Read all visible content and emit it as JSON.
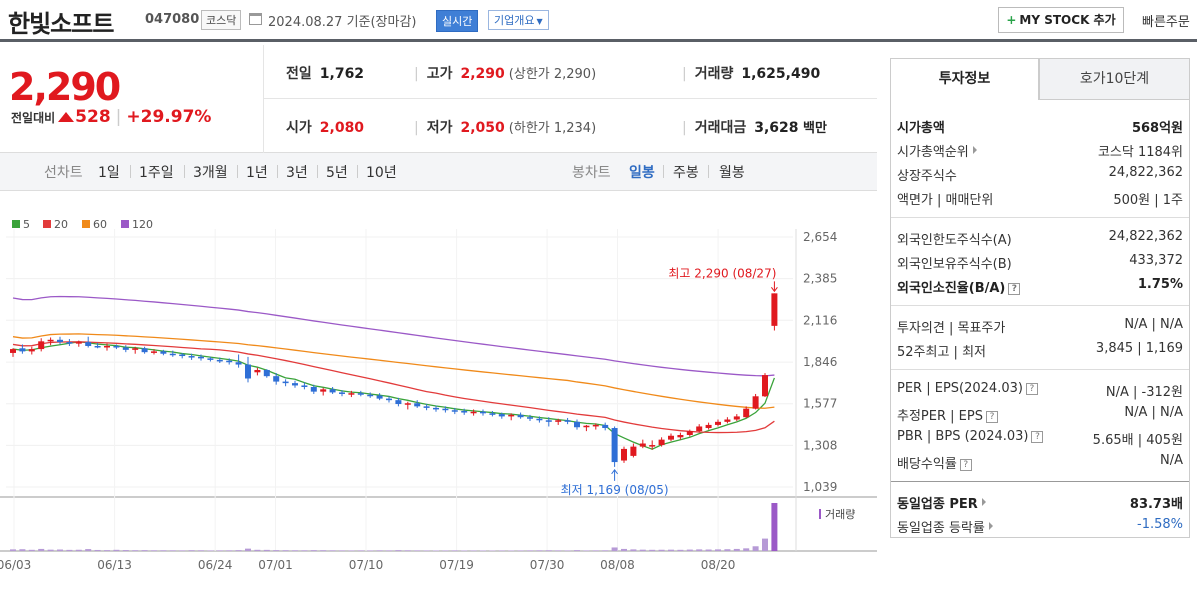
{
  "header": {
    "company_name": "한빛소프트",
    "stock_code": "047080",
    "market": "코스닥",
    "date_text": "2024.08.27  기준(장마감)",
    "realtime_label": "실시간",
    "overview_label": "기업개요",
    "mystock_label": "MY STOCK 추가",
    "quick_order_label": "빠른주문"
  },
  "price": {
    "current": "2,290",
    "change_label": "전일대비",
    "change_value": "528",
    "change_pct": "+29.97%"
  },
  "quote": {
    "prev_label": "전일",
    "prev_value": "1,762",
    "high_label": "고가",
    "high_value": "2,290",
    "upper_limit": "(상한가 2,290)",
    "volume_label": "거래량",
    "volume_value": "1,625,490",
    "open_label": "시가",
    "open_value": "2,080",
    "low_label": "저가",
    "low_value": "2,050",
    "lower_limit": "(하한가 1,234)",
    "amount_label": "거래대금",
    "amount_value": "3,628",
    "amount_unit": "백만"
  },
  "period_tabs": {
    "line_label": "선차트",
    "line_tabs": [
      "1일",
      "1주일",
      "3개월",
      "1년",
      "3년",
      "5년",
      "10년"
    ],
    "candle_label": "봉차트",
    "candle_tabs": [
      "일봉",
      "주봉",
      "월봉"
    ],
    "selected": "일봉"
  },
  "chart_data": {
    "type": "candlestick",
    "legend": [
      "5",
      "20",
      "60",
      "120"
    ],
    "legend_colors": [
      "#3aa33a",
      "#e23b3b",
      "#f08a1a",
      "#9b59c7"
    ],
    "y_ticks": [
      "2,654",
      "2,385",
      "2,116",
      "1,846",
      "1,577",
      "1,308",
      "1,039"
    ],
    "ylim": [
      1039,
      2654
    ],
    "x_ticks": [
      "06/03",
      "06/13",
      "06/24",
      "07/01",
      "07/10",
      "07/19",
      "07/30",
      "08/08",
      "08/20"
    ],
    "high_annotation": "최고 2,290 (08/27)",
    "low_annotation": "최저 1,169 (08/05)",
    "volume_label": "거래량",
    "up_color": "#e0191f",
    "down_color": "#2f6fd6",
    "candles": [
      {
        "o": 1905,
        "h": 1935,
        "l": 1880,
        "c": 1930
      },
      {
        "o": 1935,
        "h": 1960,
        "l": 1900,
        "c": 1915
      },
      {
        "o": 1915,
        "h": 1945,
        "l": 1895,
        "c": 1930
      },
      {
        "o": 1930,
        "h": 2000,
        "l": 1915,
        "c": 1980
      },
      {
        "o": 1980,
        "h": 2005,
        "l": 1955,
        "c": 1990
      },
      {
        "o": 1990,
        "h": 2010,
        "l": 1960,
        "c": 1975
      },
      {
        "o": 1975,
        "h": 1995,
        "l": 1950,
        "c": 1965
      },
      {
        "o": 1965,
        "h": 1985,
        "l": 1945,
        "c": 1975
      },
      {
        "o": 1975,
        "h": 2010,
        "l": 1940,
        "c": 1950
      },
      {
        "o": 1950,
        "h": 1970,
        "l": 1935,
        "c": 1945
      },
      {
        "o": 1945,
        "h": 1965,
        "l": 1920,
        "c": 1950
      },
      {
        "o": 1950,
        "h": 1960,
        "l": 1930,
        "c": 1940
      },
      {
        "o": 1940,
        "h": 1955,
        "l": 1910,
        "c": 1925
      },
      {
        "o": 1925,
        "h": 1945,
        "l": 1900,
        "c": 1935
      },
      {
        "o": 1935,
        "h": 1945,
        "l": 1900,
        "c": 1910
      },
      {
        "o": 1910,
        "h": 1930,
        "l": 1895,
        "c": 1915
      },
      {
        "o": 1915,
        "h": 1925,
        "l": 1890,
        "c": 1900
      },
      {
        "o": 1900,
        "h": 1920,
        "l": 1880,
        "c": 1895
      },
      {
        "o": 1895,
        "h": 1905,
        "l": 1870,
        "c": 1885
      },
      {
        "o": 1885,
        "h": 1900,
        "l": 1860,
        "c": 1880
      },
      {
        "o": 1880,
        "h": 1895,
        "l": 1855,
        "c": 1870
      },
      {
        "o": 1870,
        "h": 1880,
        "l": 1850,
        "c": 1860
      },
      {
        "o": 1860,
        "h": 1875,
        "l": 1840,
        "c": 1855
      },
      {
        "o": 1855,
        "h": 1870,
        "l": 1830,
        "c": 1845
      },
      {
        "o": 1845,
        "h": 1895,
        "l": 1810,
        "c": 1830
      },
      {
        "o": 1830,
        "h": 1880,
        "l": 1715,
        "c": 1740
      },
      {
        "o": 1780,
        "h": 1810,
        "l": 1760,
        "c": 1795
      },
      {
        "o": 1795,
        "h": 1800,
        "l": 1745,
        "c": 1755
      },
      {
        "o": 1755,
        "h": 1775,
        "l": 1700,
        "c": 1720
      },
      {
        "o": 1720,
        "h": 1735,
        "l": 1690,
        "c": 1710
      },
      {
        "o": 1710,
        "h": 1725,
        "l": 1680,
        "c": 1695
      },
      {
        "o": 1695,
        "h": 1715,
        "l": 1670,
        "c": 1685
      },
      {
        "o": 1685,
        "h": 1700,
        "l": 1640,
        "c": 1655
      },
      {
        "o": 1655,
        "h": 1680,
        "l": 1630,
        "c": 1670
      },
      {
        "o": 1670,
        "h": 1685,
        "l": 1640,
        "c": 1650
      },
      {
        "o": 1650,
        "h": 1665,
        "l": 1625,
        "c": 1640
      },
      {
        "o": 1640,
        "h": 1660,
        "l": 1620,
        "c": 1645
      },
      {
        "o": 1645,
        "h": 1660,
        "l": 1625,
        "c": 1635
      },
      {
        "o": 1635,
        "h": 1650,
        "l": 1615,
        "c": 1630
      },
      {
        "o": 1630,
        "h": 1645,
        "l": 1600,
        "c": 1610
      },
      {
        "o": 1610,
        "h": 1625,
        "l": 1585,
        "c": 1600
      },
      {
        "o": 1600,
        "h": 1615,
        "l": 1560,
        "c": 1575
      },
      {
        "o": 1575,
        "h": 1590,
        "l": 1540,
        "c": 1580
      },
      {
        "o": 1580,
        "h": 1600,
        "l": 1550,
        "c": 1560
      },
      {
        "o": 1560,
        "h": 1575,
        "l": 1535,
        "c": 1550
      },
      {
        "o": 1550,
        "h": 1565,
        "l": 1525,
        "c": 1545
      },
      {
        "o": 1545,
        "h": 1560,
        "l": 1520,
        "c": 1535
      },
      {
        "o": 1535,
        "h": 1550,
        "l": 1510,
        "c": 1530
      },
      {
        "o": 1530,
        "h": 1545,
        "l": 1505,
        "c": 1520
      },
      {
        "o": 1520,
        "h": 1540,
        "l": 1500,
        "c": 1525
      },
      {
        "o": 1525,
        "h": 1540,
        "l": 1500,
        "c": 1515
      },
      {
        "o": 1515,
        "h": 1530,
        "l": 1495,
        "c": 1510
      },
      {
        "o": 1510,
        "h": 1520,
        "l": 1480,
        "c": 1495
      },
      {
        "o": 1495,
        "h": 1515,
        "l": 1470,
        "c": 1505
      },
      {
        "o": 1505,
        "h": 1520,
        "l": 1480,
        "c": 1490
      },
      {
        "o": 1490,
        "h": 1505,
        "l": 1465,
        "c": 1480
      },
      {
        "o": 1480,
        "h": 1495,
        "l": 1455,
        "c": 1470
      },
      {
        "o": 1470,
        "h": 1490,
        "l": 1430,
        "c": 1460
      },
      {
        "o": 1460,
        "h": 1480,
        "l": 1440,
        "c": 1470
      },
      {
        "o": 1470,
        "h": 1485,
        "l": 1445,
        "c": 1460
      },
      {
        "o": 1460,
        "h": 1475,
        "l": 1410,
        "c": 1425
      },
      {
        "o": 1425,
        "h": 1440,
        "l": 1400,
        "c": 1435
      },
      {
        "o": 1435,
        "h": 1450,
        "l": 1410,
        "c": 1440
      },
      {
        "o": 1440,
        "h": 1455,
        "l": 1405,
        "c": 1420
      },
      {
        "o": 1420,
        "h": 1430,
        "l": 1169,
        "c": 1200
      },
      {
        "o": 1210,
        "h": 1300,
        "l": 1195,
        "c": 1285
      },
      {
        "o": 1240,
        "h": 1320,
        "l": 1230,
        "c": 1300
      },
      {
        "o": 1300,
        "h": 1345,
        "l": 1290,
        "c": 1320
      },
      {
        "o": 1300,
        "h": 1340,
        "l": 1280,
        "c": 1310
      },
      {
        "o": 1310,
        "h": 1360,
        "l": 1300,
        "c": 1345
      },
      {
        "o": 1345,
        "h": 1385,
        "l": 1335,
        "c": 1370
      },
      {
        "o": 1360,
        "h": 1390,
        "l": 1345,
        "c": 1375
      },
      {
        "o": 1375,
        "h": 1410,
        "l": 1365,
        "c": 1400
      },
      {
        "o": 1400,
        "h": 1445,
        "l": 1390,
        "c": 1430
      },
      {
        "o": 1420,
        "h": 1455,
        "l": 1410,
        "c": 1440
      },
      {
        "o": 1440,
        "h": 1475,
        "l": 1430,
        "c": 1460
      },
      {
        "o": 1460,
        "h": 1490,
        "l": 1450,
        "c": 1475
      },
      {
        "o": 1475,
        "h": 1510,
        "l": 1465,
        "c": 1495
      },
      {
        "o": 1490,
        "h": 1560,
        "l": 1485,
        "c": 1545
      },
      {
        "o": 1545,
        "h": 1640,
        "l": 1540,
        "c": 1625
      },
      {
        "o": 1625,
        "h": 1775,
        "l": 1620,
        "c": 1762
      },
      {
        "o": 2080,
        "h": 2290,
        "l": 2050,
        "c": 2290
      }
    ],
    "volume": [
      55,
      60,
      40,
      70,
      45,
      50,
      38,
      42,
      65,
      35,
      30,
      40,
      32,
      28,
      30,
      25,
      26,
      24,
      22,
      28,
      25,
      20,
      22,
      24,
      30,
      80,
      40,
      38,
      30,
      28,
      26,
      25,
      30,
      28,
      24,
      22,
      20,
      22,
      20,
      24,
      22,
      30,
      25,
      22,
      20,
      18,
      20,
      22,
      18,
      20,
      18,
      16,
      20,
      18,
      20,
      22,
      24,
      26,
      22,
      20,
      30,
      20,
      22,
      24,
      120,
      70,
      55,
      45,
      40,
      42,
      45,
      40,
      48,
      55,
      50,
      55,
      60,
      70,
      90,
      160,
      420,
      1625
    ]
  },
  "invest_info": {
    "tab_invest": "투자정보",
    "tab_order": "호가10단계",
    "rows": [
      {
        "label": "시가총액",
        "value": "568억원"
      },
      {
        "label": "시가총액순위",
        "value": "코스닥 1184위"
      },
      {
        "label": "상장주식수",
        "value": "24,822,362"
      },
      {
        "label": "액면가 | 매매단위",
        "value": "500원 | 1주"
      },
      {
        "label": "외국인한도주식수(A)",
        "value": "24,822,362"
      },
      {
        "label": "외국인보유주식수(B)",
        "value": "433,372"
      },
      {
        "label": "외국인소진율(B/A)",
        "value": "1.75%"
      },
      {
        "label": "투자의견 | 목표주가",
        "value": "N/A | N/A"
      },
      {
        "label": "52주최고 | 최저",
        "value": "3,845 | 1,169"
      },
      {
        "label": "PER | EPS(2024.03)",
        "value": "N/A | -312원"
      },
      {
        "label": "추정PER | EPS",
        "value": "N/A | N/A"
      },
      {
        "label": "PBR | BPS (2024.03)",
        "value": "5.65배 | 405원"
      },
      {
        "label": "배당수익률",
        "value": "N/A"
      },
      {
        "label": "동일업종 PER",
        "value": "83.73배"
      },
      {
        "label": "동일업종 등락률",
        "value": "-1.58%"
      }
    ]
  }
}
